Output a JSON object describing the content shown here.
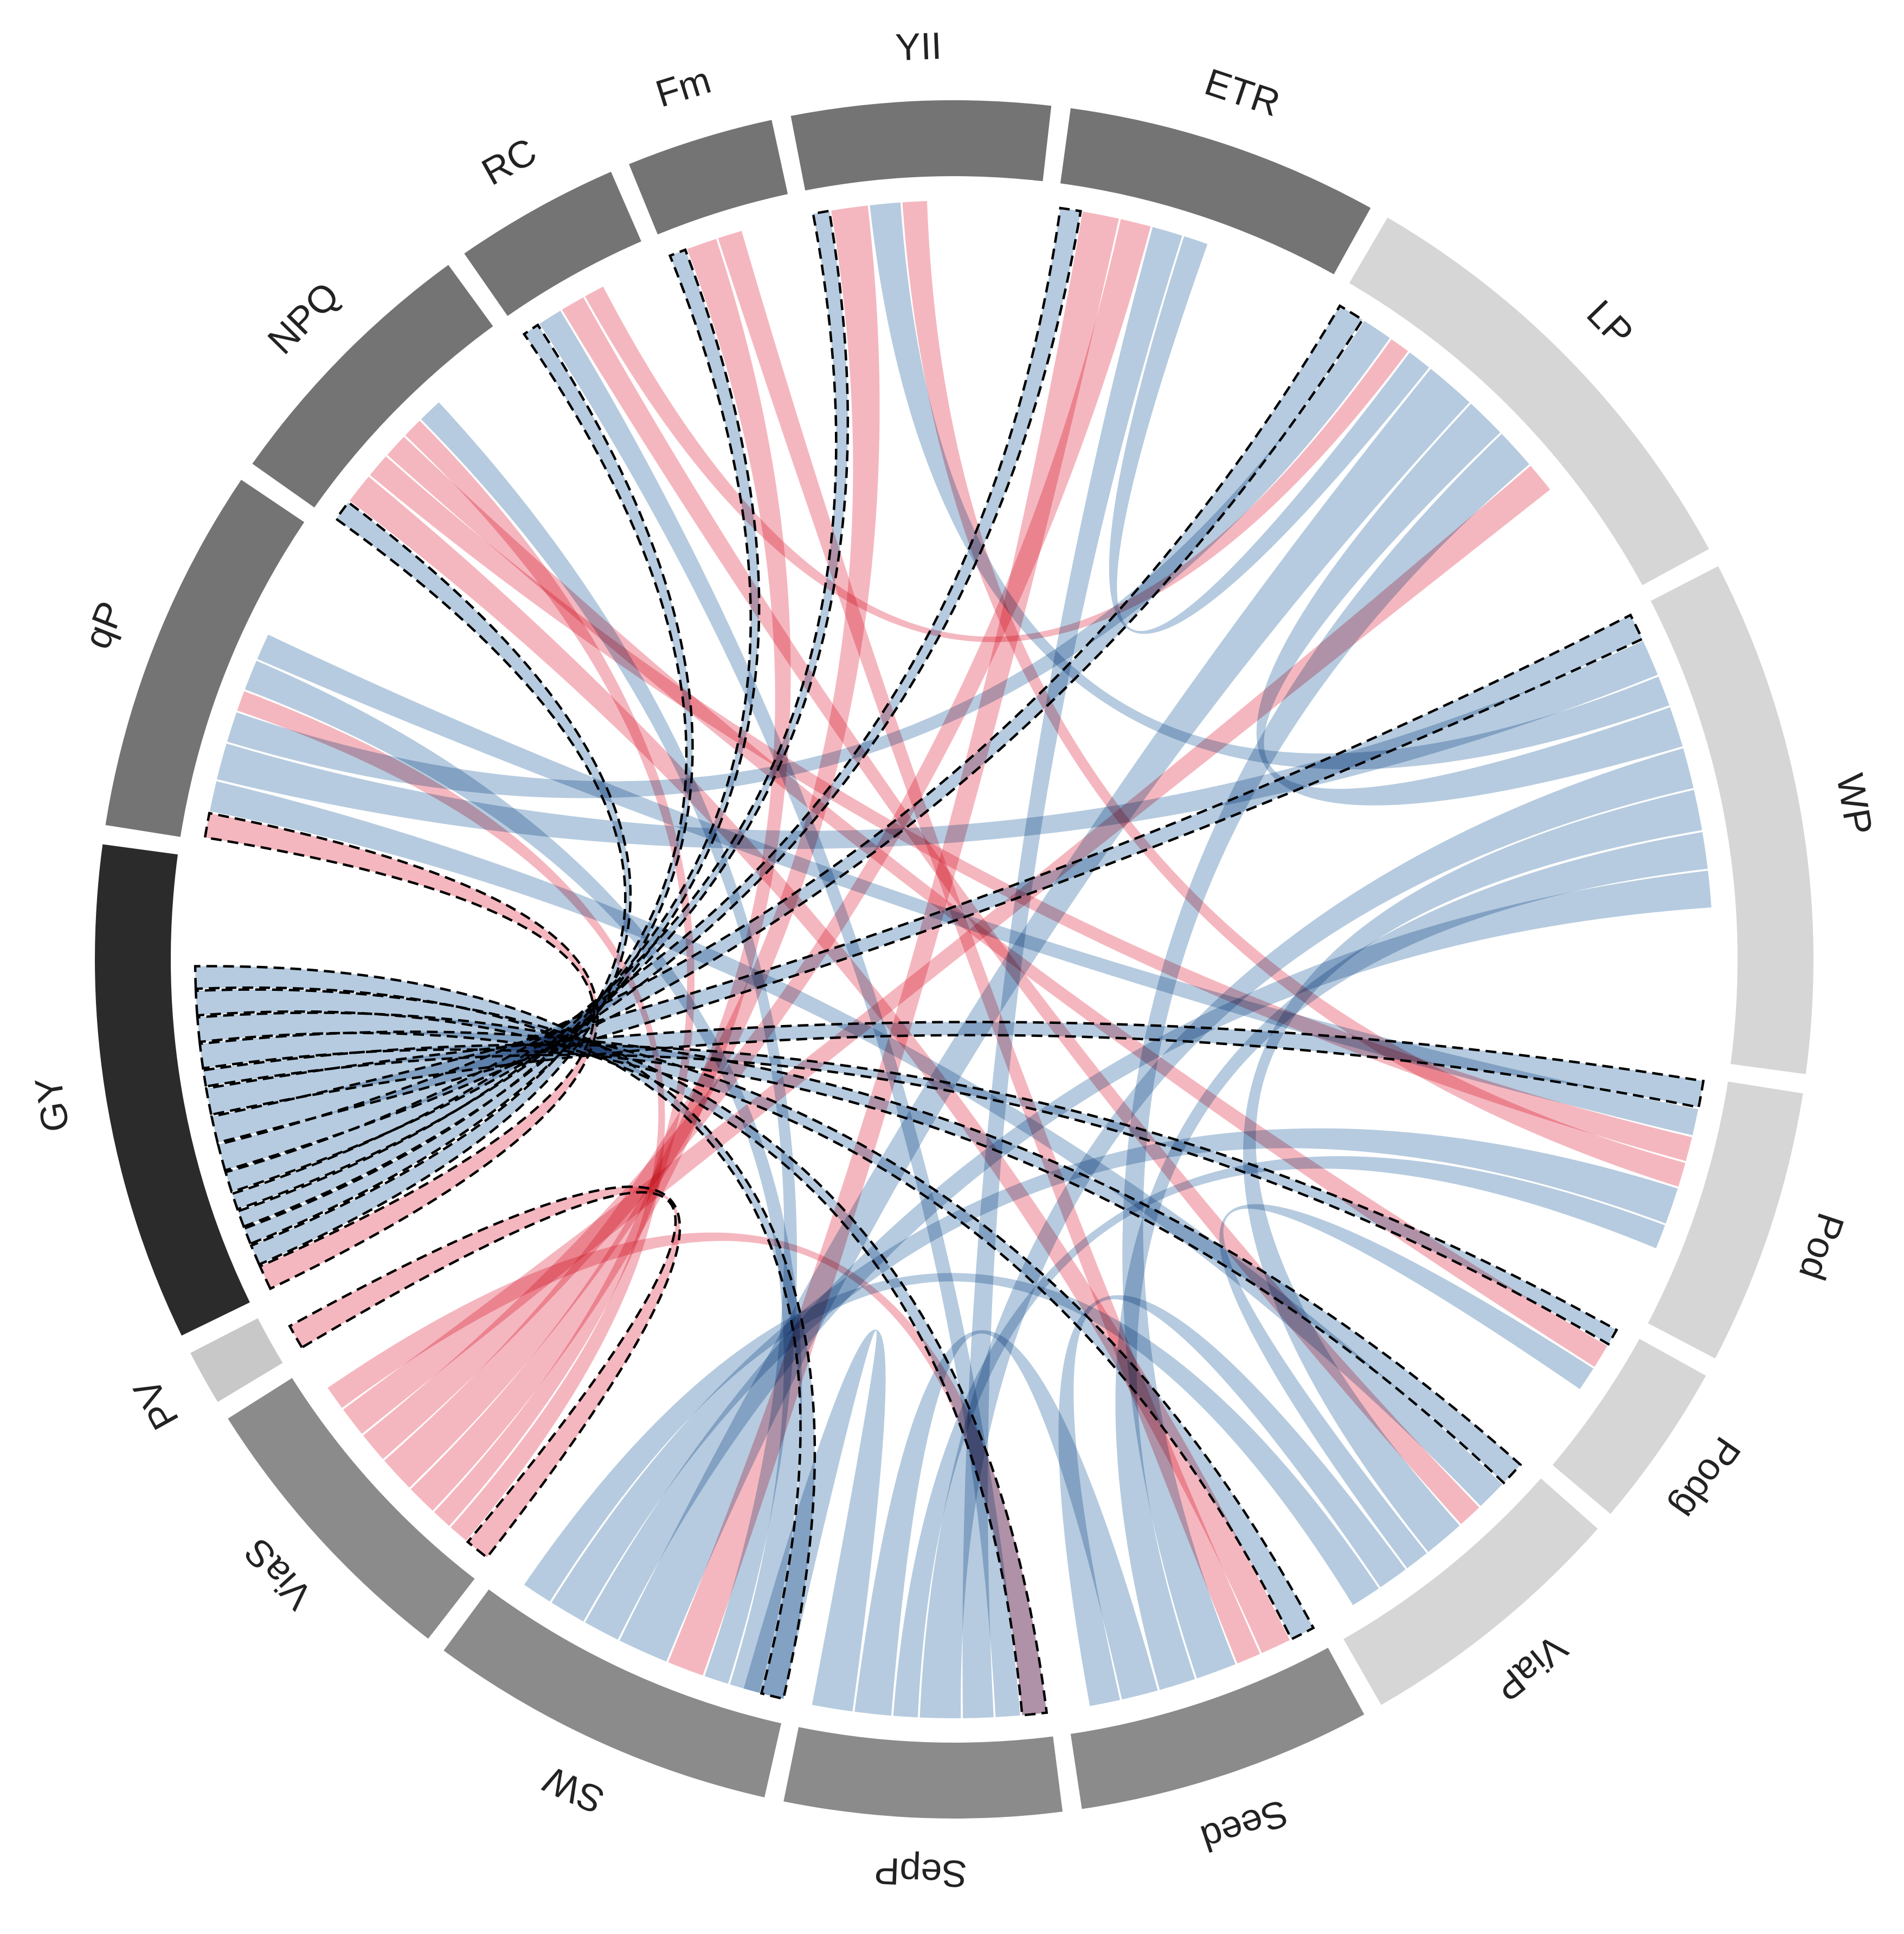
{
  "chart_data": {
    "type": "chord",
    "title": "",
    "sectors": [
      {
        "label": "qP",
        "value": 10,
        "color": "#747474"
      },
      {
        "label": "NPQ",
        "value": 7.5,
        "color": "#747474"
      },
      {
        "label": "RC",
        "value": 4.5,
        "color": "#747474"
      },
      {
        "label": "Fm",
        "value": 4,
        "color": "#747474"
      },
      {
        "label": "YII",
        "value": 7,
        "color": "#747474"
      },
      {
        "label": "ETR",
        "value": 8.5,
        "color": "#747474"
      },
      {
        "label": "LP",
        "value": 12.5,
        "color": "#d6d6d6"
      },
      {
        "label": "WP",
        "value": 14,
        "color": "#d6d6d6"
      },
      {
        "label": "Pod",
        "value": 7.5,
        "color": "#d6d6d6"
      },
      {
        "label": "Podg",
        "value": 4.5,
        "color": "#d6d6d6"
      },
      {
        "label": "ViaP",
        "value": 7.5,
        "color": "#d6d6d6"
      },
      {
        "label": "Seed",
        "value": 8,
        "color": "#8b8b8b"
      },
      {
        "label": "SepP",
        "value": 7.5,
        "color": "#8b8b8b"
      },
      {
        "label": "SW",
        "value": 9.5,
        "color": "#8b8b8b"
      },
      {
        "label": "ViaS",
        "value": 8,
        "color": "#8b8b8b"
      },
      {
        "label": "PV",
        "value": 1.5,
        "color": "#c8c8c8"
      },
      {
        "label": "GY",
        "value": 13.5,
        "color": "#2b2b2b"
      }
    ],
    "links_legend": {
      "positive": "#a6bfd8",
      "negative": "#f3a7b1"
    },
    "links": [
      {
        "source": "GY",
        "target": "qP",
        "value": 1.2,
        "sign": "negative",
        "highlight": true
      },
      {
        "source": "GY",
        "target": "NPQ",
        "value": 1.0,
        "sign": "positive",
        "highlight": true
      },
      {
        "source": "GY",
        "target": "RC",
        "value": 0.8,
        "sign": "positive",
        "highlight": true
      },
      {
        "source": "GY",
        "target": "Fm",
        "value": 0.8,
        "sign": "positive",
        "highlight": true
      },
      {
        "source": "GY",
        "target": "YII",
        "value": 0.8,
        "sign": "positive",
        "highlight": true
      },
      {
        "source": "GY",
        "target": "ETR",
        "value": 1.0,
        "sign": "positive",
        "highlight": true
      },
      {
        "source": "GY",
        "target": "LP",
        "value": 1.3,
        "sign": "positive",
        "highlight": true
      },
      {
        "source": "GY",
        "target": "WP",
        "value": 1.3,
        "sign": "positive",
        "highlight": true
      },
      {
        "source": "GY",
        "target": "Pod",
        "value": 1.3,
        "sign": "positive",
        "highlight": true
      },
      {
        "source": "GY",
        "target": "Podg",
        "value": 0.8,
        "sign": "positive",
        "highlight": true
      },
      {
        "source": "GY",
        "target": "ViaP",
        "value": 1.2,
        "sign": "positive",
        "highlight": true
      },
      {
        "source": "GY",
        "target": "Seed",
        "value": 1.2,
        "sign": "positive",
        "highlight": true
      },
      {
        "source": "GY",
        "target": "SepP",
        "value": 1.2,
        "sign": "positive",
        "highlight": true
      },
      {
        "source": "GY",
        "target": "SW",
        "value": 1.1,
        "sign": "positive",
        "highlight": true
      },
      {
        "source": "PV",
        "target": "ViaS",
        "value": 1.2,
        "sign": "negative",
        "highlight": true
      },
      {
        "source": "qP",
        "target": "ViaP",
        "value": 1.5,
        "sign": "positive",
        "highlight": false
      },
      {
        "source": "qP",
        "target": "WP",
        "value": 1.8,
        "sign": "positive",
        "highlight": false
      },
      {
        "source": "qP",
        "target": "LP",
        "value": 1.5,
        "sign": "positive",
        "highlight": false
      },
      {
        "source": "qP",
        "target": "ViaS",
        "value": 1.0,
        "sign": "negative",
        "highlight": false
      },
      {
        "source": "qP",
        "target": "SW",
        "value": 1.5,
        "sign": "positive",
        "highlight": false
      },
      {
        "source": "qP",
        "target": "Pod",
        "value": 1.3,
        "sign": "positive",
        "highlight": false
      },
      {
        "source": "NPQ",
        "target": "Seed",
        "value": 1.5,
        "sign": "negative",
        "highlight": false
      },
      {
        "source": "NPQ",
        "target": "Pod",
        "value": 1.2,
        "sign": "negative",
        "highlight": false
      },
      {
        "source": "NPQ",
        "target": "Podg",
        "value": 1.2,
        "sign": "negative",
        "highlight": false
      },
      {
        "source": "NPQ",
        "target": "ViaS",
        "value": 1.0,
        "sign": "negative",
        "highlight": false
      },
      {
        "source": "NPQ",
        "target": "SW",
        "value": 1.2,
        "sign": "positive",
        "highlight": false
      },
      {
        "source": "RC",
        "target": "SepP",
        "value": 1.2,
        "sign": "positive",
        "highlight": false
      },
      {
        "source": "RC",
        "target": "ViaP",
        "value": 1.2,
        "sign": "negative",
        "highlight": false
      },
      {
        "source": "RC",
        "target": "LP",
        "value": 1.0,
        "sign": "negative",
        "highlight": false
      },
      {
        "source": "Fm",
        "target": "ViaS",
        "value": 1.5,
        "sign": "negative",
        "highlight": false
      },
      {
        "source": "Fm",
        "target": "Seed",
        "value": 1.2,
        "sign": "negative",
        "highlight": false
      },
      {
        "source": "YII",
        "target": "ViaS",
        "value": 1.8,
        "sign": "negative",
        "highlight": false
      },
      {
        "source": "YII",
        "target": "WP",
        "value": 1.5,
        "sign": "positive",
        "highlight": false
      },
      {
        "source": "YII",
        "target": "Pod",
        "value": 1.2,
        "sign": "negative",
        "highlight": false
      },
      {
        "source": "ETR",
        "target": "SW",
        "value": 1.8,
        "sign": "negative",
        "highlight": false
      },
      {
        "source": "ETR",
        "target": "ViaS",
        "value": 1.5,
        "sign": "negative",
        "highlight": false
      },
      {
        "source": "ETR",
        "target": "SepP",
        "value": 1.5,
        "sign": "positive",
        "highlight": false
      },
      {
        "source": "ETR",
        "target": "LP",
        "value": 1.2,
        "sign": "positive",
        "highlight": false
      },
      {
        "source": "LP",
        "target": "SW",
        "value": 2.5,
        "sign": "positive",
        "highlight": false
      },
      {
        "source": "LP",
        "target": "WP",
        "value": 2.0,
        "sign": "positive",
        "highlight": false
      },
      {
        "source": "LP",
        "target": "Seed",
        "value": 2.0,
        "sign": "positive",
        "highlight": false
      },
      {
        "source": "LP",
        "target": "ViaS",
        "value": 1.5,
        "sign": "negative",
        "highlight": false
      },
      {
        "source": "WP",
        "target": "SepP",
        "value": 2.0,
        "sign": "positive",
        "highlight": false
      },
      {
        "source": "WP",
        "target": "ViaP",
        "value": 2.0,
        "sign": "positive",
        "highlight": false
      },
      {
        "source": "WP",
        "target": "Seed",
        "value": 1.8,
        "sign": "positive",
        "highlight": false
      },
      {
        "source": "WP",
        "target": "SW",
        "value": 1.8,
        "sign": "positive",
        "highlight": false
      },
      {
        "source": "Pod",
        "target": "SW",
        "value": 1.8,
        "sign": "positive",
        "highlight": false
      },
      {
        "source": "Pod",
        "target": "SepP",
        "value": 1.2,
        "sign": "positive",
        "highlight": false
      },
      {
        "source": "Podg",
        "target": "ViaP",
        "value": 1.2,
        "sign": "positive",
        "highlight": false
      },
      {
        "source": "Seed",
        "target": "SepP",
        "value": 1.8,
        "sign": "positive",
        "highlight": false
      },
      {
        "source": "Seed",
        "target": "ViaP",
        "value": 1.5,
        "sign": "positive",
        "highlight": false
      },
      {
        "source": "SW",
        "target": "ViaP",
        "value": 1.5,
        "sign": "positive",
        "highlight": false
      },
      {
        "source": "SW",
        "target": "SepP",
        "value": 2.0,
        "sign": "positive",
        "highlight": false
      },
      {
        "source": "ViaS",
        "target": "SepP",
        "value": 1.2,
        "sign": "negative",
        "highlight": false
      }
    ]
  }
}
